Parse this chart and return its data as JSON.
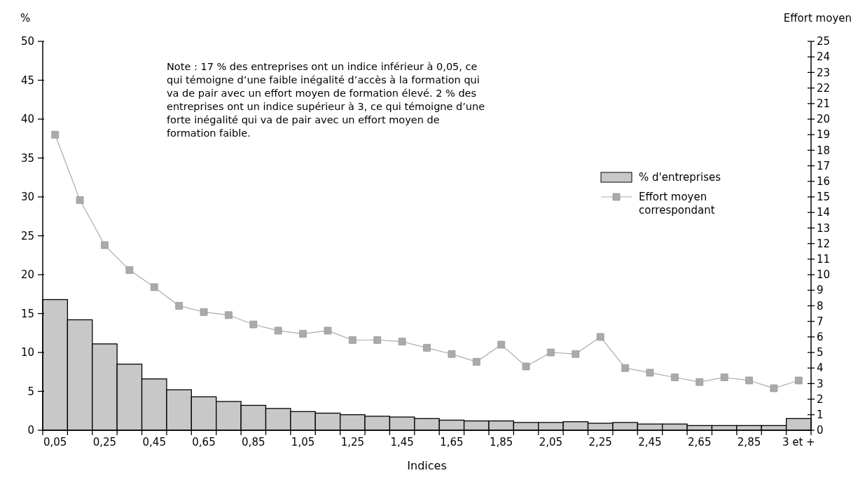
{
  "chart_data": {
    "type": "bar",
    "categories": [
      "0,05",
      null,
      "0,25",
      null,
      "0,45",
      null,
      "0,65",
      null,
      "0,85",
      null,
      "1,05",
      null,
      "1,25",
      null,
      "1,45",
      null,
      "1,65",
      null,
      "1,85",
      null,
      "2,05",
      null,
      "2,25",
      null,
      "2,45",
      null,
      "2,65",
      null,
      "2,85",
      null,
      "3 et +"
    ],
    "series": [
      {
        "name": "% d'entreprises",
        "color": "#c8c8c8",
        "values": [
          16.8,
          14.2,
          11.1,
          8.5,
          6.6,
          5.2,
          4.3,
          3.7,
          3.2,
          2.8,
          2.4,
          2.2,
          2.0,
          1.8,
          1.7,
          1.5,
          1.3,
          1.2,
          1.2,
          1.0,
          1.0,
          1.1,
          0.9,
          1.0,
          0.8,
          0.8,
          0.6,
          0.6,
          0.6,
          0.6,
          1.5
        ]
      },
      {
        "name": "Effort moyen correspondant",
        "type": "line",
        "axis": "y2",
        "color": "#aaaaaa",
        "values": [
          19.0,
          14.8,
          11.9,
          10.3,
          9.2,
          8.0,
          7.6,
          7.4,
          6.8,
          6.4,
          6.2,
          6.4,
          5.8,
          5.8,
          5.7,
          5.3,
          4.9,
          4.4,
          5.5,
          4.1,
          5.0,
          4.9,
          6.0,
          4.0,
          3.7,
          3.4,
          3.1,
          3.4,
          3.2,
          2.7,
          3.2
        ]
      }
    ],
    "ylim": [
      0,
      50
    ],
    "yticks": [
      0,
      5,
      10,
      15,
      20,
      25,
      30,
      35,
      40,
      45,
      50
    ],
    "y2lim": [
      0,
      25
    ],
    "y2ticks": [
      0,
      1,
      2,
      3,
      4,
      5,
      6,
      7,
      8,
      9,
      10,
      11,
      12,
      13,
      14,
      15,
      16,
      17,
      18,
      19,
      20,
      21,
      22,
      23,
      24,
      25
    ],
    "ylabel": "%",
    "y2label": "Effort moyen",
    "xlabel": "Indices",
    "annotations": [
      "Note : 17 % des entreprises ont un indice inférieur à 0,05, ce qui témoigne d’une faible inégalité d’accès à la formation qui va de pair avec un effort moyen de formation élevé. 2 % des entreprises ont un indice supérieur à 3, ce qui témoigne d’une forte inégalité qui va de pair avec un effort moyen de formation faible."
    ],
    "legend": "right",
    "marker": "square",
    "grid": false
  }
}
